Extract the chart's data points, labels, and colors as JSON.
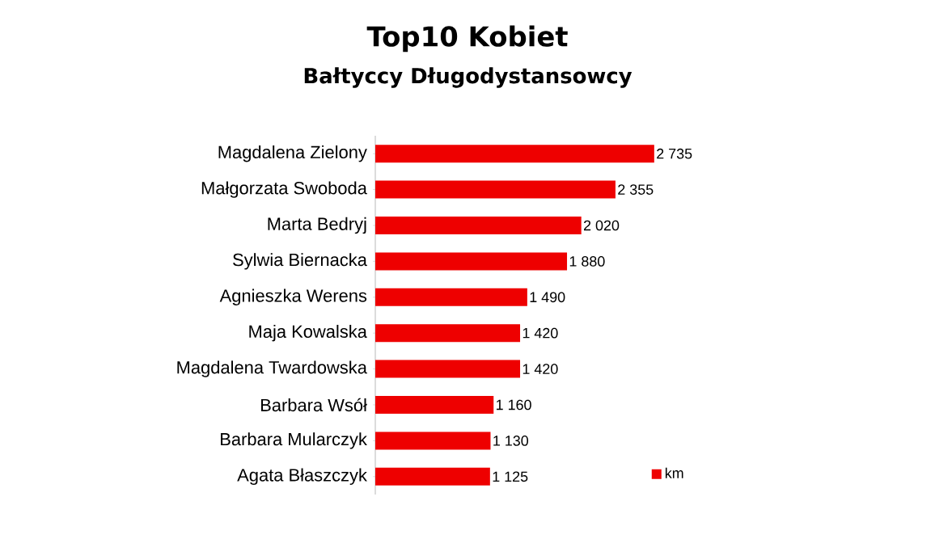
{
  "chart_data": {
    "type": "bar",
    "orientation": "horizontal",
    "title": "Top10 Kobiet",
    "subtitle": "Bałtyccy Długodystansowcy",
    "categories": [
      "Magdalena Zielony",
      "Małgorzata Swoboda",
      "Marta Bedryj",
      "Sylwia Biernacka",
      "Agnieszka Werens",
      "Maja Kowalska",
      "Magdalena Twardowska",
      "Barbara Wsół",
      "Barbara Mularczyk",
      "Agata Błaszczyk"
    ],
    "series": [
      {
        "name": "km",
        "color": "#ee0000",
        "values": [
          2735,
          2355,
          2020,
          1880,
          1490,
          1420,
          1420,
          1160,
          1130,
          1125
        ],
        "value_labels": [
          "2 735",
          "2 355",
          "2 020",
          "1 880",
          "1 490",
          "1 420",
          "1 420",
          "1 160",
          "1 130",
          "1 125"
        ]
      }
    ],
    "legend": "bottom right"
  }
}
